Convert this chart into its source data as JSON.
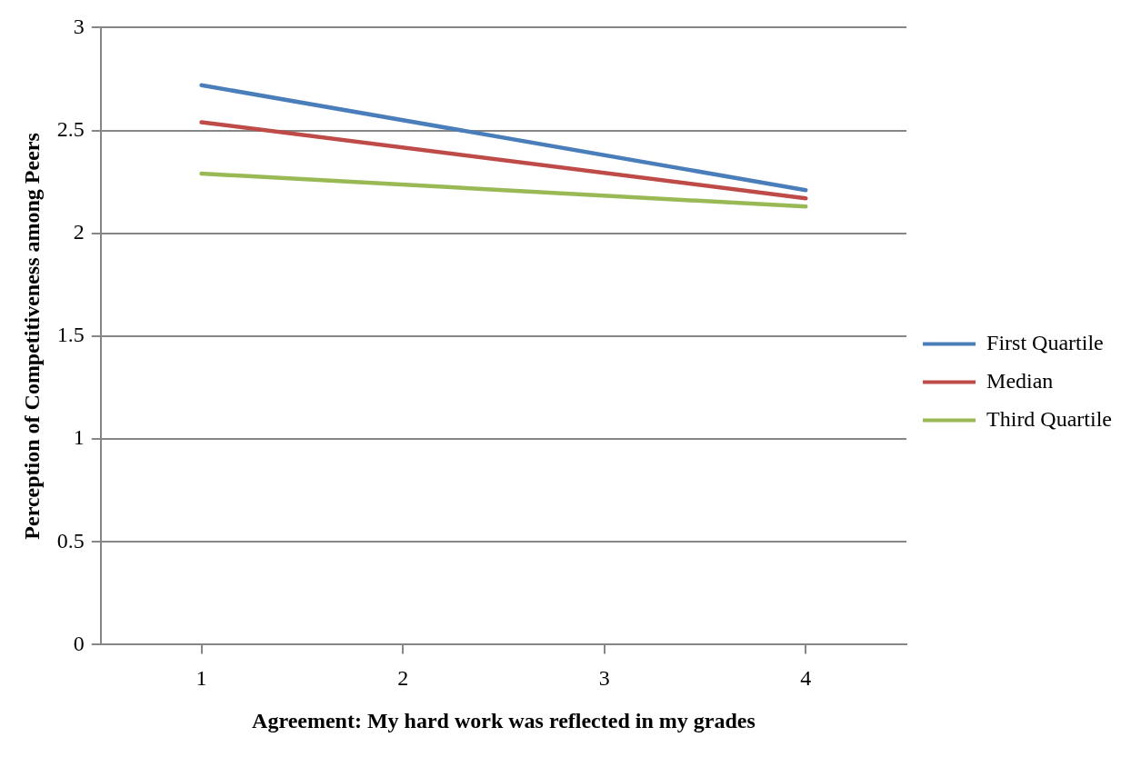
{
  "chart_data": {
    "type": "line",
    "xlabel": "Agreement: My hard work was reflected in my grades",
    "ylabel": "Perception of Competitiveness among Peers",
    "x": [
      1,
      4
    ],
    "xlim": [
      0.5,
      4.5
    ],
    "xticks": [
      1,
      2,
      3,
      4
    ],
    "ylim": [
      0,
      3
    ],
    "yticks": [
      0,
      0.5,
      1,
      1.5,
      2,
      2.5,
      3
    ],
    "grid": "y",
    "legend": "right",
    "marker": "none",
    "line_style": "solid",
    "series": [
      {
        "name": "First Quartile",
        "color": "#4a7ebb",
        "values": [
          2.72,
          2.21
        ]
      },
      {
        "name": "Median",
        "color": "#be4b48",
        "values": [
          2.54,
          2.17
        ]
      },
      {
        "name": "Third Quartile",
        "color": "#98b954",
        "values": [
          2.29,
          2.13
        ]
      }
    ]
  }
}
